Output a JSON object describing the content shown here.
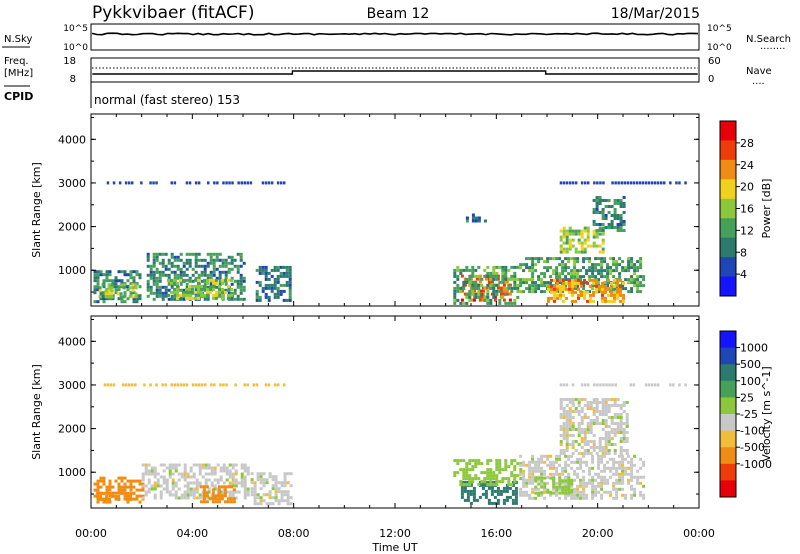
{
  "header": {
    "station": "Pykkvibaer (fitACF)",
    "beam": "Beam 12",
    "date": "18/Mar/2015"
  },
  "panels": {
    "nsky": {
      "label": "N.Sky",
      "tick_top": "10^5",
      "tick_bottom": "10^0",
      "right_tick_top": "10^5",
      "right_tick_bottom": "10^0",
      "right_label": "N.Search",
      "right_marker": "........"
    },
    "freq": {
      "label_line1": "Freq.",
      "label_line2": "[MHz]",
      "tick_top": "18",
      "tick_bottom": "8",
      "right_tick_top": "60",
      "right_tick_bottom": "0",
      "right_label": "Nave",
      "right_marker": "...."
    },
    "cpid": {
      "label": "CPID",
      "mode": "normal (fast stereo) 153"
    }
  },
  "colors": {
    "power_scale": [
      "#1414ff",
      "#1e46b4",
      "#2d7a6e",
      "#46a05a",
      "#8cc83c",
      "#f0d21e",
      "#f08c14",
      "#f03c0a",
      "#e6000a"
    ],
    "velocity_scale": [
      "#e6000a",
      "#f03c0a",
      "#f08c14",
      "#f0be3c",
      "#c8c8c8",
      "#8cc83c",
      "#46a05a",
      "#2d7a6e",
      "#1e46b4",
      "#1414ff"
    ]
  },
  "chart_data": [
    {
      "type": "heatmap",
      "title": "Power",
      "ylabel": "Slant Range [km]",
      "xlabel": "",
      "x_ticks": [
        "00:00",
        "04:00",
        "08:00",
        "12:00",
        "16:00",
        "20:00",
        "00:00"
      ],
      "x_range_hours": [
        0,
        24
      ],
      "y_ticks": [
        "1000",
        "2000",
        "3000",
        "4000"
      ],
      "y_range_km": [
        180,
        4580
      ],
      "colorbar": {
        "label": "Power [dB]",
        "range": [
          0,
          32
        ],
        "ticks": [
          "4",
          "8",
          "12",
          "16",
          "20",
          "24",
          "28"
        ]
      },
      "regions": [
        {
          "t0": 0.1,
          "t1": 1.9,
          "r0": 300,
          "r1": 1000,
          "value": 10
        },
        {
          "t0": 0.3,
          "t1": 1.8,
          "r0": 400,
          "r1": 700,
          "value": 17
        },
        {
          "t0": 2.2,
          "t1": 6.0,
          "r0": 300,
          "r1": 1400,
          "value": 10
        },
        {
          "t0": 3.0,
          "t1": 5.6,
          "r0": 350,
          "r1": 800,
          "value": 16
        },
        {
          "t0": 6.5,
          "t1": 7.9,
          "r0": 300,
          "r1": 1100,
          "value": 8
        },
        {
          "t0": 14.6,
          "t1": 16.5,
          "r0": 300,
          "r1": 900,
          "value": 26
        },
        {
          "t0": 14.3,
          "t1": 16.9,
          "r0": 250,
          "r1": 1100,
          "value": 12
        },
        {
          "t0": 16.9,
          "t1": 21.8,
          "r0": 500,
          "r1": 1300,
          "value": 12
        },
        {
          "t0": 18.0,
          "t1": 21.0,
          "r0": 300,
          "r1": 800,
          "value": 22
        },
        {
          "t0": 18.5,
          "t1": 20.2,
          "r0": 1400,
          "r1": 2000,
          "value": 16
        },
        {
          "t0": 19.8,
          "t1": 21.0,
          "r0": 1900,
          "r1": 2700,
          "value": 10
        },
        {
          "t0": 14.8,
          "t1": 15.6,
          "r0": 2100,
          "r1": 2300,
          "value": 8
        }
      ],
      "stripes": [
        {
          "t0": 0.5,
          "t1": 7.8,
          "r": 3000,
          "value": 6
        },
        {
          "t0": 18.5,
          "t1": 23.5,
          "r": 3000,
          "value": 6
        }
      ]
    },
    {
      "type": "heatmap",
      "title": "Velocity",
      "ylabel": "Slant Range [km]",
      "xlabel": "Time UT",
      "x_ticks": [
        "00:00",
        "04:00",
        "08:00",
        "12:00",
        "16:00",
        "20:00",
        "00:00"
      ],
      "x_range_hours": [
        0,
        24
      ],
      "y_ticks": [
        "1000",
        "2000",
        "3000",
        "4000"
      ],
      "y_range_km": [
        180,
        4580
      ],
      "colorbar": {
        "label": "Velocity [m s^-1]",
        "ticks": [
          "1000",
          "500",
          "100",
          "25",
          "-25",
          "-100",
          "-500",
          "-1000"
        ]
      },
      "regions": [
        {
          "t0": 0.1,
          "t1": 2.0,
          "r0": 300,
          "r1": 900,
          "value": -200
        },
        {
          "t0": 0.2,
          "t1": 1.7,
          "r0": 350,
          "r1": 550,
          "value": -400
        },
        {
          "t0": 2.0,
          "t1": 6.2,
          "r0": 400,
          "r1": 1200,
          "value": 0
        },
        {
          "t0": 4.3,
          "t1": 5.7,
          "r0": 300,
          "r1": 700,
          "value": -300
        },
        {
          "t0": 6.3,
          "t1": 7.9,
          "r0": 300,
          "r1": 1000,
          "value": 0
        },
        {
          "t0": 14.6,
          "t1": 16.8,
          "r0": 300,
          "r1": 800,
          "value": 600
        },
        {
          "t0": 14.3,
          "t1": 17.0,
          "r0": 700,
          "r1": 1300,
          "value": 60
        },
        {
          "t0": 16.9,
          "t1": 21.8,
          "r0": 400,
          "r1": 1400,
          "value": 0
        },
        {
          "t0": 18.5,
          "t1": 21.2,
          "r0": 1400,
          "r1": 2700,
          "value": 0
        },
        {
          "t0": 17.5,
          "t1": 19.0,
          "r0": 500,
          "r1": 900,
          "value": 60
        }
      ],
      "stripes": [
        {
          "t0": 0.5,
          "t1": 7.8,
          "r": 3000,
          "value": -40
        },
        {
          "t0": 18.5,
          "t1": 23.5,
          "r": 3000,
          "value": 0
        }
      ]
    }
  ]
}
